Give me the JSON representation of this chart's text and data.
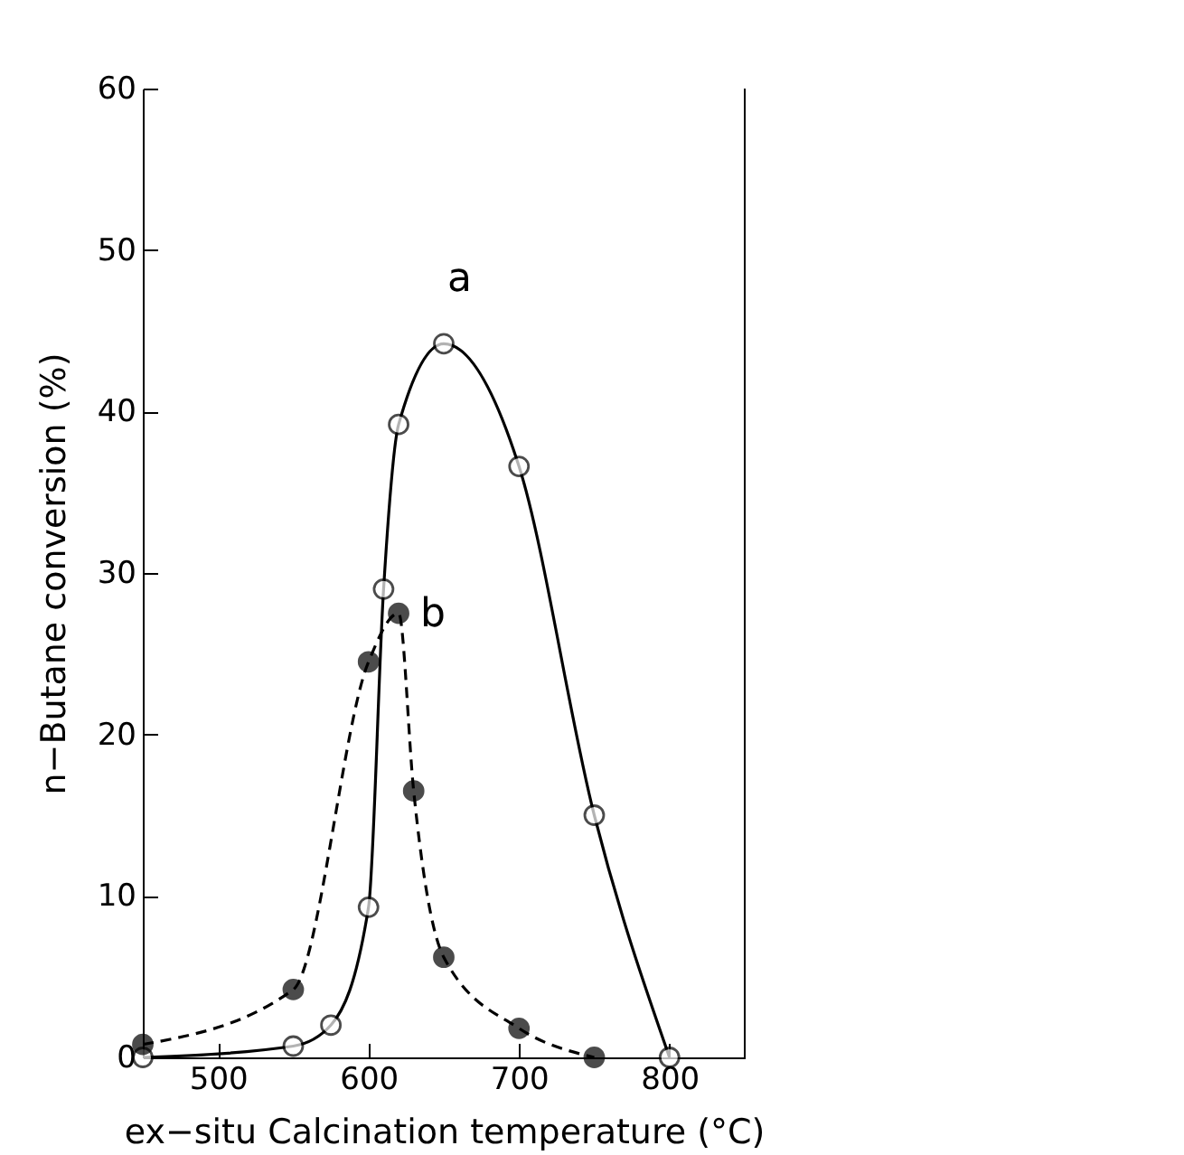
{
  "chart_data": {
    "type": "line",
    "xlabel": "ex−situ Calcination temperature (°C)",
    "ylabel": "n−Butane conversion (%)",
    "xlim": [
      450,
      850
    ],
    "ylim": [
      0,
      60
    ],
    "xticks": [
      500,
      600,
      700,
      800
    ],
    "yticks": [
      0,
      10,
      20,
      30,
      40,
      50,
      60
    ],
    "grid": false,
    "marker": "circle",
    "series": [
      {
        "name": "a",
        "color": "#000000",
        "line_style": "solid",
        "x": [
          450,
          550,
          575,
          600,
          610,
          620,
          650,
          700,
          750,
          800
        ],
        "values": [
          0,
          0.7,
          2,
          9.3,
          29,
          39.2,
          44.2,
          36.6,
          15,
          0
        ]
      },
      {
        "name": "b",
        "color": "#000000",
        "line_style": "dashed",
        "x": [
          450,
          550,
          600,
          620,
          630,
          650,
          700,
          750
        ],
        "values": [
          0.8,
          4.2,
          24.5,
          27.5,
          16.5,
          6.2,
          1.8,
          0
        ]
      }
    ]
  }
}
